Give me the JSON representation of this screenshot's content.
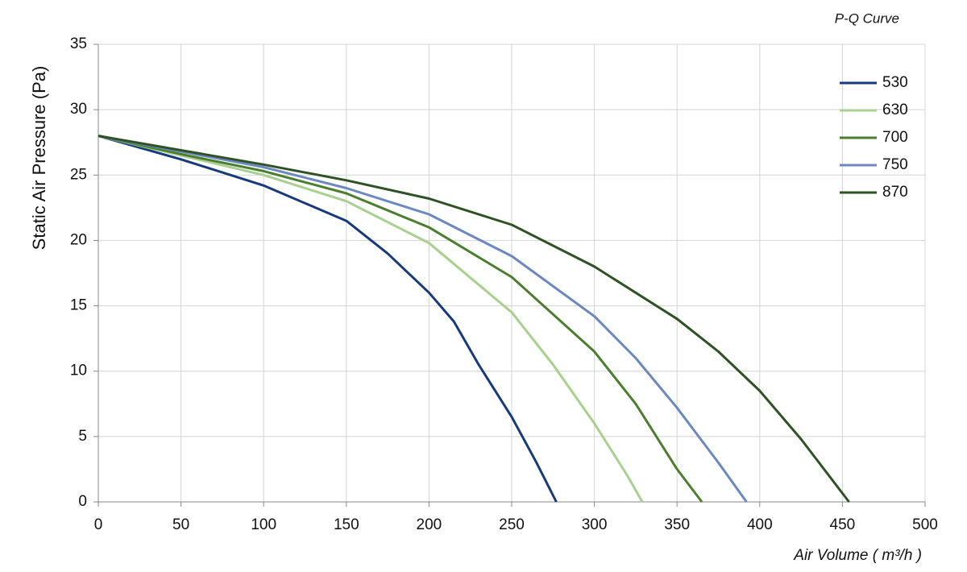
{
  "chart_data": {
    "type": "line",
    "title": "P-Q Curve",
    "x_label": "Air Volume ( m³/h )",
    "y_label": "Static Air Pressure  (Pa)",
    "xlim": [
      0,
      500
    ],
    "xticks": [
      0,
      50,
      100,
      150,
      200,
      250,
      300,
      350,
      400,
      450,
      500
    ],
    "ylim": [
      0,
      35
    ],
    "yticks": [
      0,
      5,
      10,
      15,
      20,
      25,
      30,
      35
    ],
    "grid": true,
    "legend": "upper right",
    "series": [
      {
        "name": "530",
        "color": "#173a7c",
        "x": [
          0,
          50,
          100,
          150,
          175,
          200,
          215,
          230,
          250,
          265,
          277
        ],
        "values": [
          28,
          26.2,
          24.2,
          21.5,
          19,
          16,
          13.8,
          10.5,
          6.5,
          3,
          0
        ]
      },
      {
        "name": "630",
        "color": "#a8d08f",
        "x": [
          0,
          50,
          100,
          150,
          200,
          250,
          275,
          300,
          320,
          329
        ],
        "values": [
          28,
          26.5,
          25,
          23,
          19.8,
          14.5,
          10.5,
          6,
          2,
          0
        ]
      },
      {
        "name": "700",
        "color": "#4b7f2f",
        "x": [
          0,
          50,
          100,
          150,
          200,
          250,
          300,
          325,
          350,
          365
        ],
        "values": [
          28,
          26.6,
          25.3,
          23.6,
          21,
          17.2,
          11.5,
          7.5,
          2.5,
          0
        ]
      },
      {
        "name": "750",
        "color": "#6c88c1",
        "x": [
          0,
          50,
          100,
          150,
          200,
          250,
          300,
          325,
          350,
          375,
          392
        ],
        "values": [
          28,
          26.8,
          25.6,
          24,
          22,
          18.8,
          14.2,
          11,
          7.2,
          3,
          0
        ]
      },
      {
        "name": "870",
        "color": "#2e5223",
        "x": [
          0,
          50,
          100,
          150,
          200,
          250,
          300,
          350,
          375,
          400,
          425,
          454
        ],
        "values": [
          28,
          26.9,
          25.8,
          24.6,
          23.2,
          21.2,
          18,
          14,
          11.5,
          8.5,
          4.8,
          0
        ]
      }
    ]
  }
}
